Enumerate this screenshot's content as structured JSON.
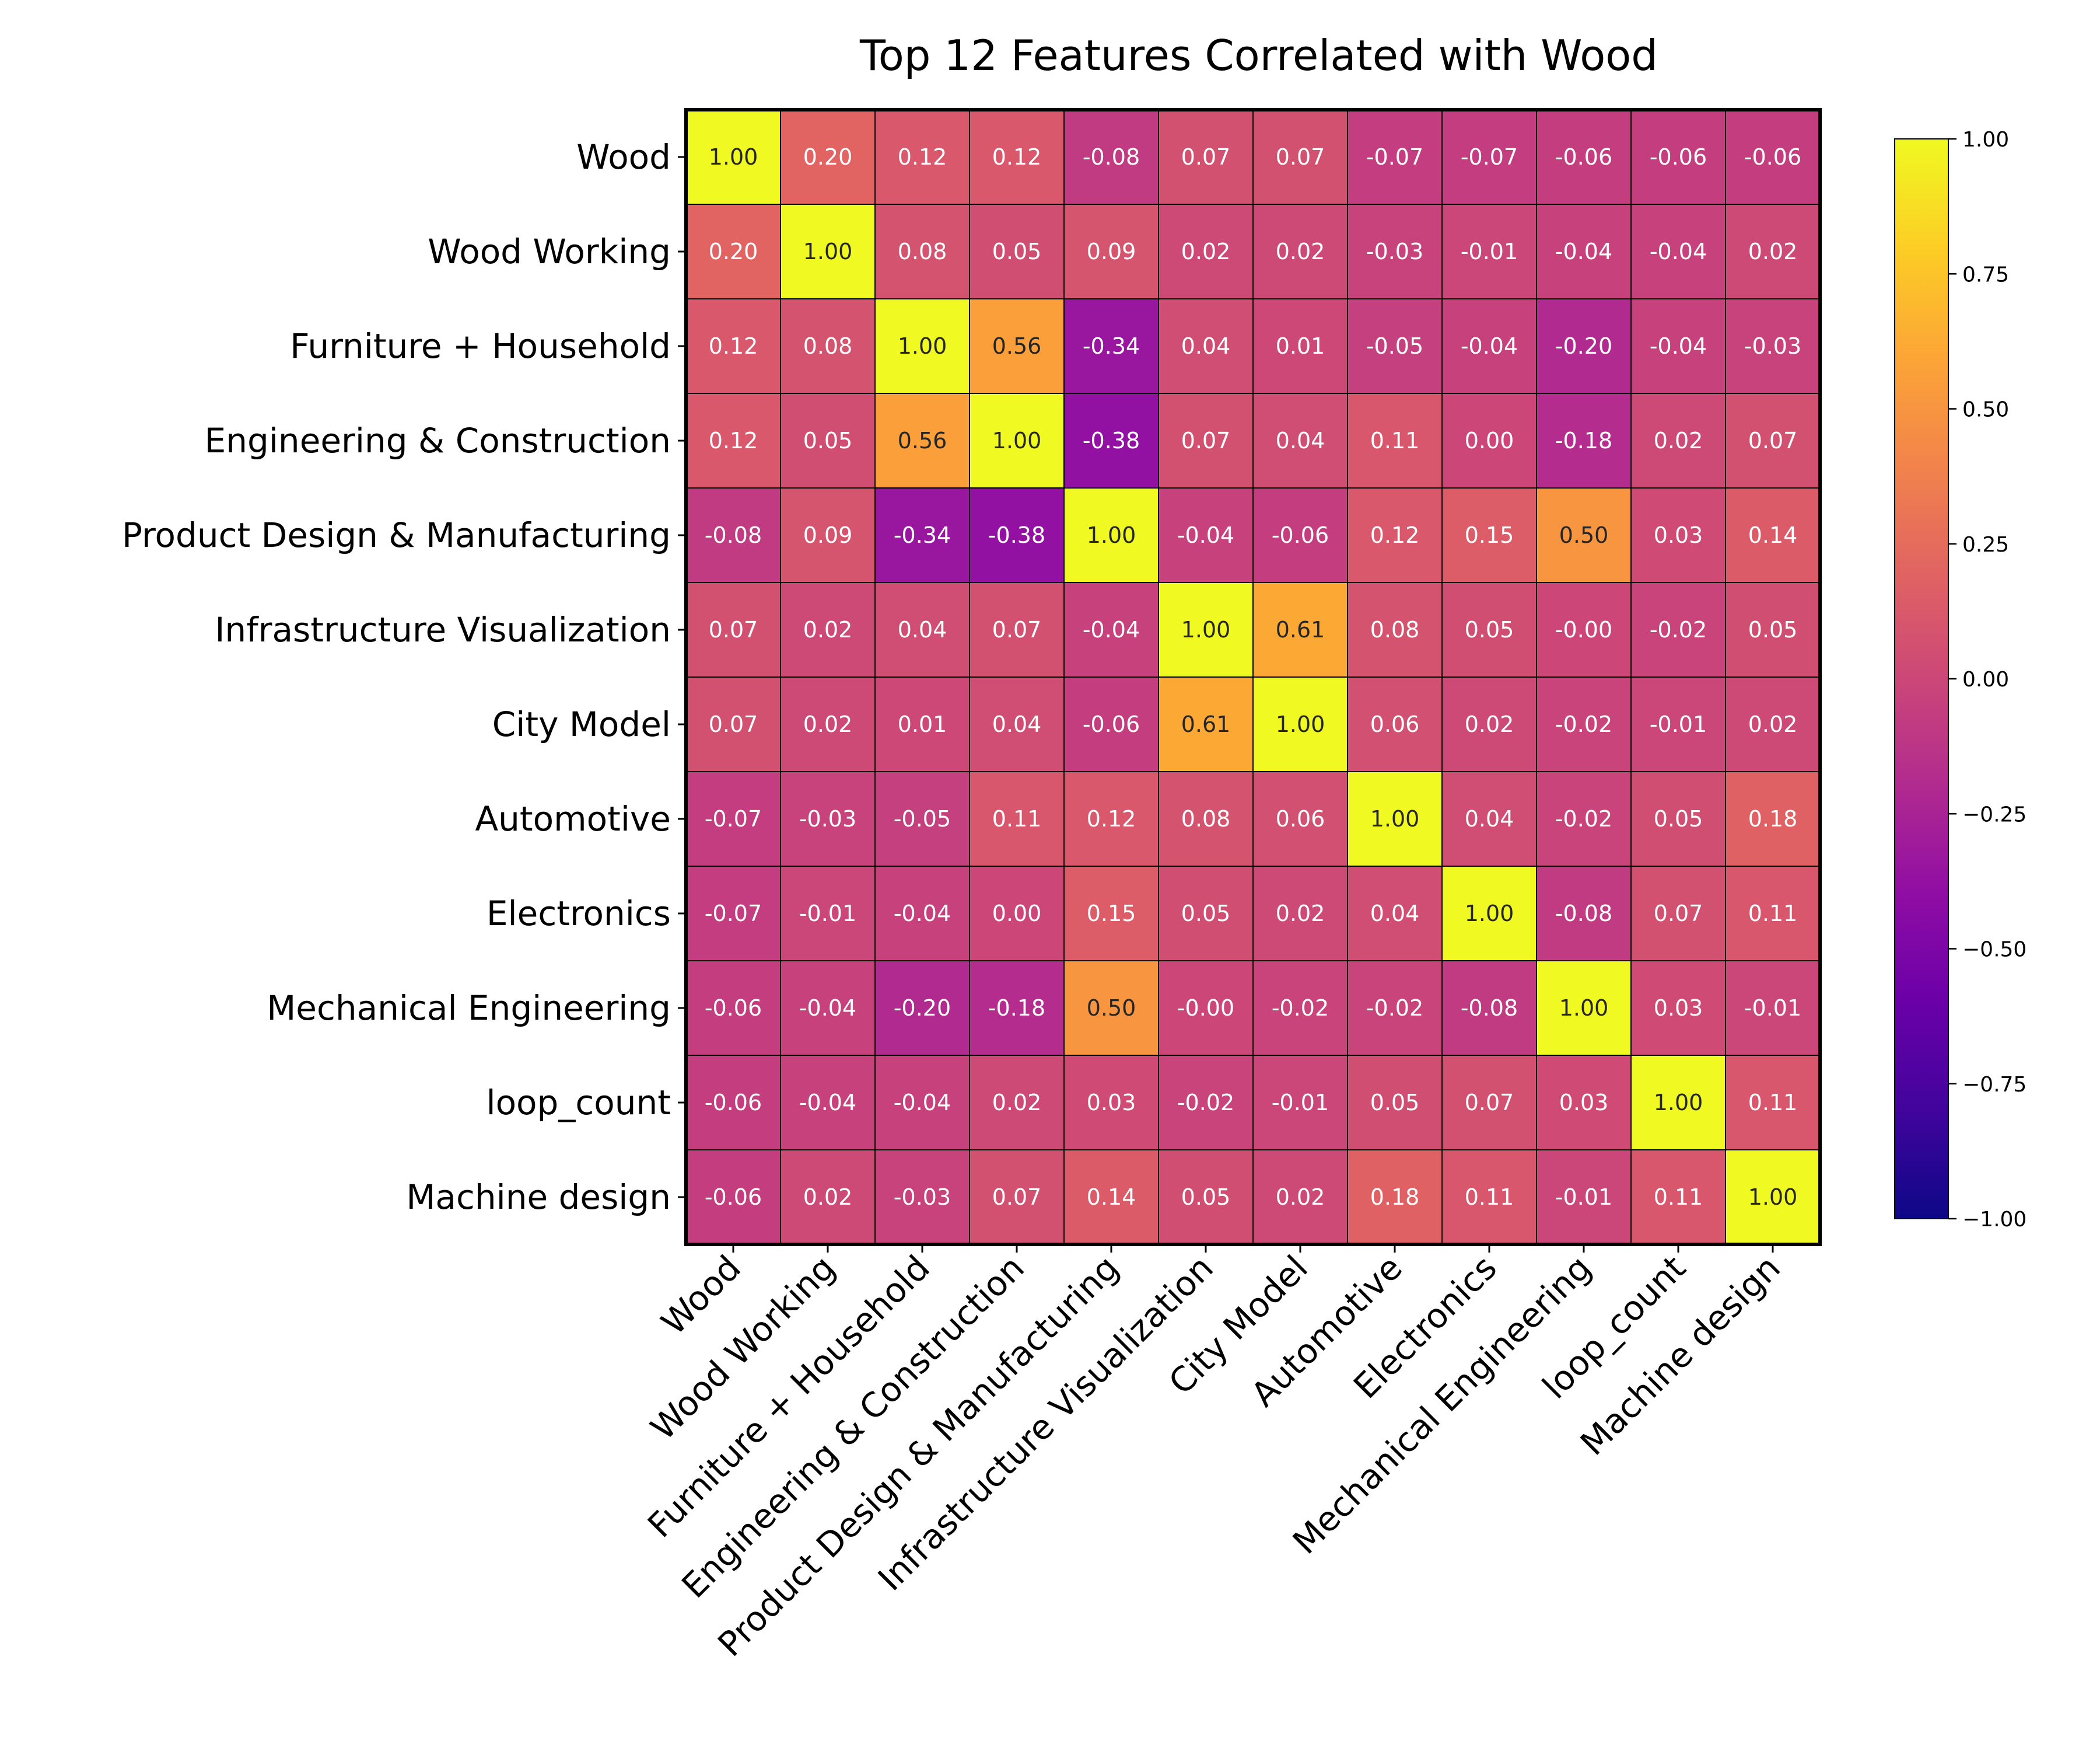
{
  "chart_data": {
    "type": "heatmap",
    "title": "Top 12 Features Correlated with Wood",
    "colormap": "plasma",
    "vmin": -1.0,
    "vmax": 1.0,
    "colorbar_ticks": [
      "1.00",
      "0.75",
      "0.50",
      "0.25",
      "0.00",
      "−0.25",
      "−0.50",
      "−0.75",
      "−1.00"
    ],
    "colorbar_tick_values": [
      1.0,
      0.75,
      0.5,
      0.25,
      0.0,
      -0.25,
      -0.5,
      -0.75,
      -1.0
    ],
    "labels": [
      "Wood",
      "Wood Working",
      "Furniture + Household",
      "Engineering & Construction",
      "Product Design & Manufacturing",
      "Infrastructure Visualization",
      "City Model",
      "Automotive",
      "Electronics",
      "Mechanical Engineering",
      "loop_count",
      "Machine design"
    ],
    "values": [
      [
        1.0,
        0.2,
        0.12,
        0.12,
        -0.08,
        0.07,
        0.07,
        -0.07,
        -0.07,
        -0.06,
        -0.06,
        -0.06
      ],
      [
        0.2,
        1.0,
        0.08,
        0.05,
        0.09,
        0.02,
        0.02,
        -0.03,
        -0.01,
        -0.04,
        -0.04,
        0.02
      ],
      [
        0.12,
        0.08,
        1.0,
        0.56,
        -0.34,
        0.04,
        0.01,
        -0.05,
        -0.04,
        -0.2,
        -0.04,
        -0.03
      ],
      [
        0.12,
        0.05,
        0.56,
        1.0,
        -0.38,
        0.07,
        0.04,
        0.11,
        0.0,
        -0.18,
        0.02,
        0.07
      ],
      [
        -0.08,
        0.09,
        -0.34,
        -0.38,
        1.0,
        -0.04,
        -0.06,
        0.12,
        0.15,
        0.5,
        0.03,
        0.14
      ],
      [
        0.07,
        0.02,
        0.04,
        0.07,
        -0.04,
        1.0,
        0.61,
        0.08,
        0.05,
        -0.0,
        -0.02,
        0.05
      ],
      [
        0.07,
        0.02,
        0.01,
        0.04,
        -0.06,
        0.61,
        1.0,
        0.06,
        0.02,
        -0.02,
        -0.01,
        0.02
      ],
      [
        -0.07,
        -0.03,
        -0.05,
        0.11,
        0.12,
        0.08,
        0.06,
        1.0,
        0.04,
        -0.02,
        0.05,
        0.18
      ],
      [
        -0.07,
        -0.01,
        -0.04,
        0.0,
        0.15,
        0.05,
        0.02,
        0.04,
        1.0,
        -0.08,
        0.07,
        0.11
      ],
      [
        -0.06,
        -0.04,
        -0.2,
        -0.18,
        0.5,
        -0.0,
        -0.02,
        -0.02,
        -0.08,
        1.0,
        0.03,
        -0.01
      ],
      [
        -0.06,
        -0.04,
        -0.04,
        0.02,
        0.03,
        -0.02,
        -0.01,
        0.05,
        0.07,
        0.03,
        1.0,
        0.11
      ],
      [
        -0.06,
        0.02,
        -0.03,
        0.07,
        0.14,
        0.05,
        0.02,
        0.18,
        0.11,
        -0.01,
        0.11,
        1.0
      ]
    ],
    "cell_text": [
      [
        "1.00",
        "0.20",
        "0.12",
        "0.12",
        "-0.08",
        "0.07",
        "0.07",
        "-0.07",
        "-0.07",
        "-0.06",
        "-0.06",
        "-0.06"
      ],
      [
        "0.20",
        "1.00",
        "0.08",
        "0.05",
        "0.09",
        "0.02",
        "0.02",
        "-0.03",
        "-0.01",
        "-0.04",
        "-0.04",
        "0.02"
      ],
      [
        "0.12",
        "0.08",
        "1.00",
        "0.56",
        "-0.34",
        "0.04",
        "0.01",
        "-0.05",
        "-0.04",
        "-0.20",
        "-0.04",
        "-0.03"
      ],
      [
        "0.12",
        "0.05",
        "0.56",
        "1.00",
        "-0.38",
        "0.07",
        "0.04",
        "0.11",
        "0.00",
        "-0.18",
        "0.02",
        "0.07"
      ],
      [
        "-0.08",
        "0.09",
        "-0.34",
        "-0.38",
        "1.00",
        "-0.04",
        "-0.06",
        "0.12",
        "0.15",
        "0.50",
        "0.03",
        "0.14"
      ],
      [
        "0.07",
        "0.02",
        "0.04",
        "0.07",
        "-0.04",
        "1.00",
        "0.61",
        "0.08",
        "0.05",
        "-0.00",
        "-0.02",
        "0.05"
      ],
      [
        "0.07",
        "0.02",
        "0.01",
        "0.04",
        "-0.06",
        "0.61",
        "1.00",
        "0.06",
        "0.02",
        "-0.02",
        "-0.01",
        "0.02"
      ],
      [
        "-0.07",
        "-0.03",
        "-0.05",
        "0.11",
        "0.12",
        "0.08",
        "0.06",
        "1.00",
        "0.04",
        "-0.02",
        "0.05",
        "0.18"
      ],
      [
        "-0.07",
        "-0.01",
        "-0.04",
        "0.00",
        "0.15",
        "0.05",
        "0.02",
        "0.04",
        "1.00",
        "-0.08",
        "0.07",
        "0.11"
      ],
      [
        "-0.06",
        "-0.04",
        "-0.20",
        "-0.18",
        "0.50",
        "-0.00",
        "-0.02",
        "-0.02",
        "-0.08",
        "1.00",
        "0.03",
        "-0.01"
      ],
      [
        "-0.06",
        "-0.04",
        "-0.04",
        "0.02",
        "0.03",
        "-0.02",
        "-0.01",
        "0.05",
        "0.07",
        "0.03",
        "1.00",
        "0.11"
      ],
      [
        "-0.06",
        "0.02",
        "-0.03",
        "0.07",
        "0.14",
        "0.05",
        "0.02",
        "0.18",
        "0.11",
        "-0.01",
        "0.11",
        "1.00"
      ]
    ]
  }
}
